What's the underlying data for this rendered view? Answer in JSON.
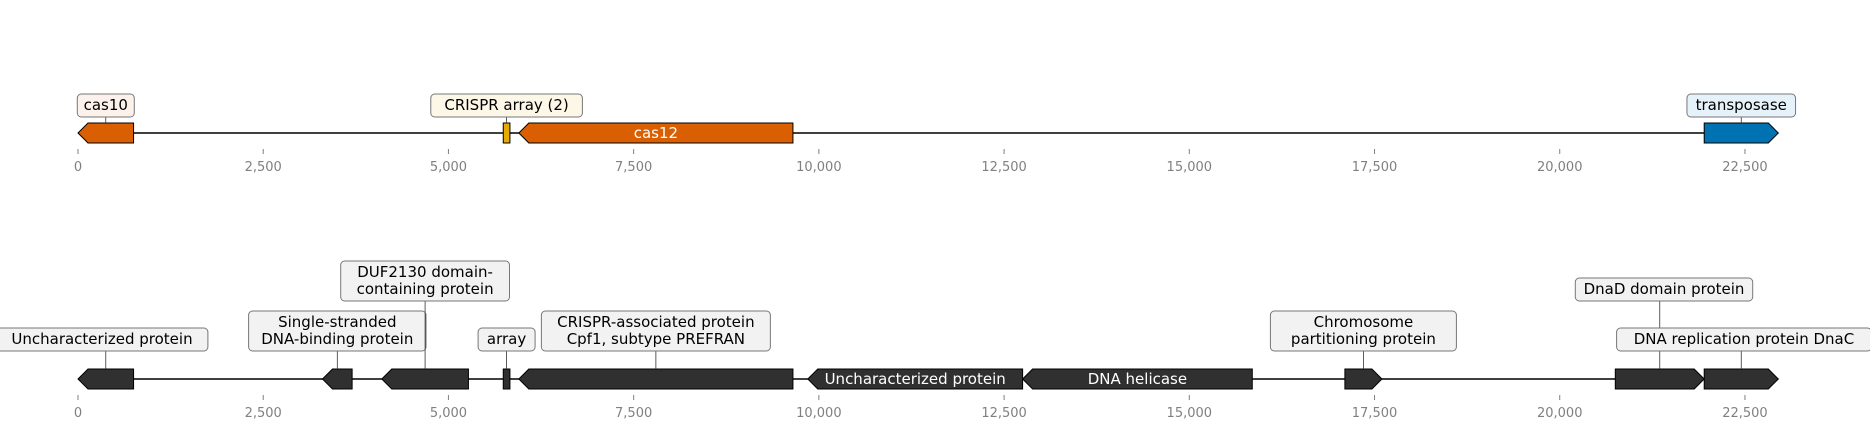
{
  "colors": {
    "cas": "#d95f02",
    "crispr_array": "#e6ab02",
    "transposase": "#0072b2",
    "generic": "#303030",
    "axis": "#000000",
    "tick_text": "#808080"
  },
  "chart_data": {
    "type": "genome-map",
    "tracks": [
      {
        "id": "top",
        "xlim": [
          0,
          23000
        ],
        "ticks": [
          "0",
          "2,500",
          "5,000",
          "7,500",
          "10,000",
          "12,500",
          "15,000",
          "17,500",
          "20,000",
          "22,500"
        ],
        "tick_values": [
          0,
          2500,
          5000,
          7500,
          10000,
          12500,
          15000,
          17500,
          20000,
          22500
        ],
        "features": [
          {
            "label": "cas10",
            "start": 0,
            "end": 750,
            "strand": -1,
            "color": "#d95f02",
            "box_bg": "#fdf2eb",
            "label_pos": "above"
          },
          {
            "label": "CRISPR array (2)",
            "start": 5740,
            "end": 5830,
            "strand": 0,
            "color": "#e6ab02",
            "box_bg": "#fdf7e8",
            "label_pos": "above"
          },
          {
            "label": "cas12",
            "start": 5950,
            "end": 9650,
            "strand": -1,
            "color": "#d95f02",
            "label_pos": "inside"
          },
          {
            "label": "transposase",
            "start": 21950,
            "end": 22950,
            "strand": 1,
            "color": "#0072b2",
            "box_bg": "#e6f2f9",
            "label_pos": "above"
          }
        ]
      },
      {
        "id": "bottom",
        "xlim": [
          0,
          23000
        ],
        "ticks": [
          "0",
          "2,500",
          "5,000",
          "7,500",
          "10,000",
          "12,500",
          "15,000",
          "17,500",
          "20,000",
          "22,500"
        ],
        "tick_values": [
          0,
          2500,
          5000,
          7500,
          10000,
          12500,
          15000,
          17500,
          20000,
          22500
        ],
        "features": [
          {
            "label": "Uncharacterized protein",
            "start": 0,
            "end": 750,
            "strand": -1,
            "color": "#303030",
            "box_bg": "#f2f2f2",
            "label_pos": "above"
          },
          {
            "label": "Single-stranded\nDNA-binding protein",
            "start": 3300,
            "end": 3700,
            "strand": -1,
            "color": "#303030",
            "box_bg": "#f2f2f2",
            "label_pos": "above"
          },
          {
            "label": "DUF2130 domain-\ncontaining protein",
            "start": 4100,
            "end": 5270,
            "strand": -1,
            "color": "#303030",
            "box_bg": "#f2f2f2",
            "label_pos": "above"
          },
          {
            "label": "array",
            "start": 5740,
            "end": 5830,
            "strand": 0,
            "color": "#303030",
            "box_bg": "#f2f2f2",
            "label_pos": "above"
          },
          {
            "label": "CRISPR-associated protein\nCpf1, subtype PREFRAN",
            "start": 5950,
            "end": 9650,
            "strand": -1,
            "color": "#303030",
            "box_bg": "#f2f2f2",
            "label_pos": "above"
          },
          {
            "label": "Uncharacterized protein",
            "start": 9850,
            "end": 12750,
            "strand": -1,
            "color": "#303030",
            "label_pos": "inside"
          },
          {
            "label": "DNA helicase",
            "start": 12750,
            "end": 15850,
            "strand": -1,
            "color": "#303030",
            "label_pos": "inside"
          },
          {
            "label": "Chromosome\npartitioning protein",
            "start": 17100,
            "end": 17600,
            "strand": 1,
            "color": "#303030",
            "box_bg": "#f2f2f2",
            "label_pos": "above"
          },
          {
            "label": "DnaD domain protein",
            "start": 20750,
            "end": 21950,
            "strand": 1,
            "color": "#303030",
            "box_bg": "#f2f2f2",
            "label_pos": "above"
          },
          {
            "label": "DNA replication protein DnaC",
            "start": 21950,
            "end": 22950,
            "strand": 1,
            "color": "#303030",
            "box_bg": "#f2f2f2",
            "label_pos": "above",
            "offset_row": true
          }
        ]
      }
    ]
  }
}
